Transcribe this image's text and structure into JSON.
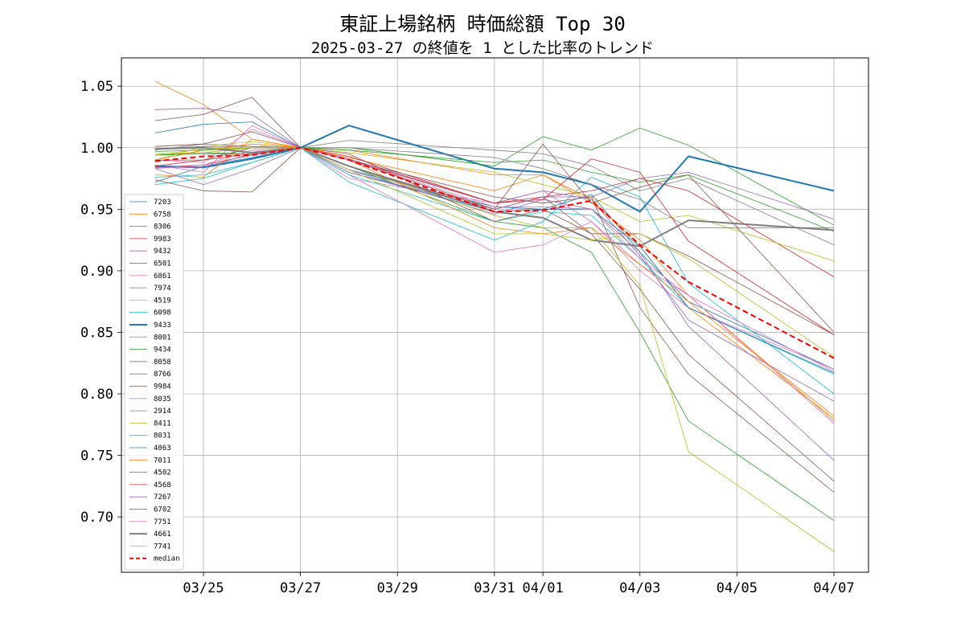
{
  "chart_data": {
    "type": "line",
    "title": "東証上場銘柄 時価総額 Top 30",
    "subtitle": "2025-03-27 の終値を 1 とした比率のトレンド",
    "x_dates": [
      "03/24",
      "03/25",
      "03/26",
      "03/27",
      "03/28",
      "03/31",
      "04/01",
      "04/02",
      "04/03",
      "04/04",
      "04/07"
    ],
    "x_tick_labels": [
      "03/25",
      "03/27",
      "03/29",
      "03/31",
      "04/01",
      "04/03",
      "04/05",
      "04/07"
    ],
    "y_ticks": [
      0.7,
      0.75,
      0.8,
      0.85,
      0.9,
      0.95,
      1.0,
      1.05
    ],
    "y_tick_labels": [
      "0.70",
      "0.75",
      "0.80",
      "0.85",
      "0.90",
      "0.95",
      "1.00",
      "1.05"
    ],
    "ylim": [
      0.655,
      1.073
    ],
    "grid": true,
    "legend_position": "left",
    "series": [
      {
        "name": "7203",
        "color": "#1f77b4",
        "width": 0.8,
        "dash": "",
        "values": [
          0.972,
          0.985,
          0.992,
          1.0,
          0.982,
          0.952,
          0.95,
          0.962,
          0.915,
          0.875,
          0.82
        ]
      },
      {
        "name": "6758",
        "color": "#ff7f0e",
        "width": 0.8,
        "dash": "",
        "values": [
          1.054,
          1.035,
          1.007,
          1.0,
          0.992,
          0.965,
          0.978,
          0.958,
          0.92,
          0.87,
          0.78
        ]
      },
      {
        "name": "8306",
        "color": "#2ca02c",
        "width": 0.8,
        "dash": "",
        "values": [
          0.994,
          0.996,
          0.995,
          1.0,
          0.985,
          0.94,
          0.935,
          0.915,
          0.85,
          0.778,
          0.697
        ]
      },
      {
        "name": "9983",
        "color": "#d62728",
        "width": 0.8,
        "dash": "",
        "values": [
          0.984,
          0.986,
          0.994,
          1.0,
          0.993,
          0.955,
          0.96,
          0.965,
          0.975,
          0.965,
          0.895
        ]
      },
      {
        "name": "9432",
        "color": "#9467bd",
        "width": 0.8,
        "dash": "",
        "values": [
          1.031,
          1.032,
          1.027,
          1.0,
          0.982,
          0.946,
          0.958,
          0.95,
          0.915,
          0.855,
          0.746
        ]
      },
      {
        "name": "6501",
        "color": "#8c564b",
        "width": 0.8,
        "dash": "",
        "values": [
          1.022,
          1.027,
          1.041,
          1.0,
          0.99,
          0.95,
          0.96,
          0.93,
          0.885,
          0.832,
          0.729
        ]
      },
      {
        "name": "6861",
        "color": "#e377c2",
        "width": 0.8,
        "dash": "",
        "values": [
          0.986,
          0.98,
          1.018,
          1.0,
          0.975,
          0.955,
          0.965,
          0.94,
          0.9,
          0.87,
          0.82
        ]
      },
      {
        "name": "7974",
        "color": "#7f7f7f",
        "width": 0.8,
        "dash": "",
        "values": [
          0.998,
          1.003,
          1.001,
          1.0,
          1.006,
          0.998,
          0.995,
          0.985,
          0.965,
          0.975,
          0.921
        ]
      },
      {
        "name": "4519",
        "color": "#bcbd22",
        "width": 0.8,
        "dash": "",
        "values": [
          0.99,
          1.001,
          1.005,
          1.0,
          0.996,
          0.98,
          0.97,
          0.96,
          0.94,
          0.945,
          0.908
        ]
      },
      {
        "name": "6098",
        "color": "#17becf",
        "width": 0.8,
        "dash": "",
        "values": [
          0.97,
          0.975,
          0.988,
          1.0,
          0.972,
          0.925,
          0.94,
          0.976,
          0.96,
          0.89,
          0.8
        ]
      },
      {
        "name": "9433",
        "color": "#1f77b4",
        "width": 2.0,
        "dash": "",
        "values": [
          0.985,
          0.984,
          0.991,
          1.0,
          1.018,
          0.983,
          0.98,
          0.97,
          0.948,
          0.993,
          0.965
        ]
      },
      {
        "name": "8001",
        "color": "#ff7f0e",
        "width": 0.8,
        "dash": "",
        "values": [
          0.978,
          0.976,
          1.007,
          1.0,
          0.998,
          0.978,
          0.978,
          0.955,
          0.925,
          0.88,
          0.778
        ]
      },
      {
        "name": "9434",
        "color": "#2ca02c",
        "width": 0.8,
        "dash": "",
        "values": [
          0.994,
          0.995,
          0.995,
          1.0,
          1.0,
          0.985,
          1.009,
          0.998,
          1.016,
          1.002,
          0.937
        ]
      },
      {
        "name": "8058",
        "color": "#8c564b",
        "width": 0.8,
        "dash": "",
        "values": [
          0.974,
          0.965,
          0.964,
          1.0,
          0.99,
          0.96,
          0.955,
          0.96,
          0.87,
          0.816,
          0.72
        ]
      },
      {
        "name": "8766",
        "color": "#9467bd",
        "width": 0.8,
        "dash": "",
        "values": [
          0.983,
          0.97,
          0.983,
          1.0,
          0.991,
          0.955,
          0.965,
          0.958,
          0.912,
          0.86,
          0.794
        ]
      },
      {
        "name": "9984",
        "color": "#8c564b",
        "width": 0.8,
        "dash": "",
        "values": [
          1.001,
          1.003,
          1.013,
          1.0,
          0.985,
          0.95,
          1.003,
          0.955,
          0.968,
          0.978,
          0.85
        ]
      },
      {
        "name": "8035",
        "color": "#e377c2",
        "width": 0.8,
        "dash": "",
        "values": [
          0.99,
          0.988,
          1.015,
          1.0,
          0.978,
          0.915,
          0.921,
          0.94,
          0.905,
          0.88,
          0.776
        ]
      },
      {
        "name": "2914",
        "color": "#7f7f7f",
        "width": 0.8,
        "dash": "",
        "values": [
          0.999,
          1.001,
          1.001,
          1.0,
          1.0,
          0.992,
          0.983,
          0.97,
          0.958,
          0.935,
          0.935
        ]
      },
      {
        "name": "8411",
        "color": "#bcbd22",
        "width": 0.8,
        "dash": "",
        "values": [
          0.995,
          0.996,
          1.0,
          1.0,
          0.985,
          0.945,
          0.935,
          0.935,
          0.888,
          0.753,
          0.672
        ]
      },
      {
        "name": "8031",
        "color": "#17becf",
        "width": 0.8,
        "dash": "",
        "values": [
          0.976,
          0.978,
          0.988,
          1.0,
          0.978,
          0.94,
          0.948,
          0.945,
          0.91,
          0.87,
          0.816
        ]
      },
      {
        "name": "4063",
        "color": "#1f77b4",
        "width": 0.8,
        "dash": "",
        "values": [
          1.012,
          1.019,
          1.021,
          1.0,
          0.98,
          0.948,
          0.95,
          0.95,
          0.92,
          0.87,
          0.817
        ]
      },
      {
        "name": "7011",
        "color": "#ff7f0e",
        "width": 0.8,
        "dash": "",
        "values": [
          0.99,
          0.998,
          1.003,
          1.0,
          0.99,
          0.935,
          0.93,
          0.935,
          0.905,
          0.875,
          0.782
        ]
      },
      {
        "name": "4502",
        "color": "#2ca02c",
        "width": 0.8,
        "dash": "",
        "values": [
          0.997,
          0.998,
          1.0,
          1.0,
          0.998,
          0.988,
          0.99,
          0.98,
          0.972,
          0.978,
          0.932
        ]
      },
      {
        "name": "4568",
        "color": "#d62728",
        "width": 0.8,
        "dash": "",
        "values": [
          0.985,
          0.99,
          0.995,
          1.0,
          0.99,
          0.955,
          0.958,
          0.991,
          0.98,
          0.924,
          0.848
        ]
      },
      {
        "name": "7267",
        "color": "#9467bd",
        "width": 0.8,
        "dash": "",
        "values": [
          0.984,
          0.984,
          0.995,
          1.0,
          0.98,
          0.95,
          0.96,
          0.96,
          0.975,
          0.98,
          0.942
        ]
      },
      {
        "name": "6702",
        "color": "#8c564b",
        "width": 0.8,
        "dash": "",
        "values": [
          0.99,
          0.99,
          1.0,
          1.0,
          0.995,
          0.94,
          0.95,
          0.93,
          0.93,
          0.912,
          0.848
        ]
      },
      {
        "name": "7751",
        "color": "#e377c2",
        "width": 0.8,
        "dash": "",
        "values": [
          0.983,
          0.986,
          0.998,
          1.0,
          0.99,
          0.952,
          0.952,
          0.95,
          0.91,
          0.88,
          0.818
        ]
      },
      {
        "name": "4661",
        "color": "#7f7f7f",
        "width": 2.0,
        "dash": "",
        "values": [
          0.999,
          1.0,
          0.996,
          1.0,
          0.985,
          0.948,
          0.943,
          0.925,
          0.92,
          0.941,
          0.933
        ]
      },
      {
        "name": "7741",
        "color": "#bcbd22",
        "width": 0.8,
        "dash": "",
        "values": [
          0.994,
          0.999,
          1.0,
          1.0,
          0.982,
          0.93,
          0.93,
          0.925,
          0.93,
          0.91,
          0.83
        ]
      },
      {
        "name": "median",
        "color": "#ff0000",
        "width": 2.0,
        "dash": "7,4",
        "values": [
          0.989,
          0.993,
          0.994,
          1.0,
          0.99,
          0.948,
          0.949,
          0.957,
          0.921,
          0.891,
          0.829
        ]
      }
    ]
  }
}
